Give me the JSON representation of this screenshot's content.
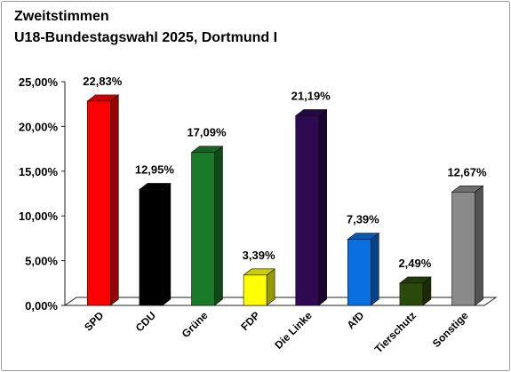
{
  "chart_data": {
    "type": "bar",
    "title": "Zweitstimmen",
    "subtitle": "U18-Bundestagswahl 2025, Dortmund I",
    "categories": [
      "SPD",
      "CDU",
      "Grüne",
      "FDP",
      "Die Linke",
      "AfD",
      "Tierschutz",
      "Sonstige"
    ],
    "values": [
      22.83,
      12.95,
      17.09,
      3.39,
      21.19,
      7.39,
      2.49,
      12.67
    ],
    "value_labels": [
      "22,83%",
      "12,95%",
      "17,09%",
      "3,39%",
      "21,19%",
      "7,39%",
      "2,49%",
      "12,67%"
    ],
    "colors": [
      "#ff0000",
      "#000000",
      "#1a7a2a",
      "#ffff00",
      "#2e0a52",
      "#0a6fe0",
      "#2a4a0c",
      "#8a8a8a"
    ],
    "ylim": [
      0,
      25
    ],
    "yticks": [
      0,
      5,
      10,
      15,
      20,
      25
    ],
    "ytick_labels": [
      "0,00%",
      "5,00%",
      "10,00%",
      "15,00%",
      "20,00%",
      "25,00%"
    ],
    "xlabel": "",
    "ylabel": "",
    "grid": false,
    "legend": "none",
    "style": "3d"
  }
}
